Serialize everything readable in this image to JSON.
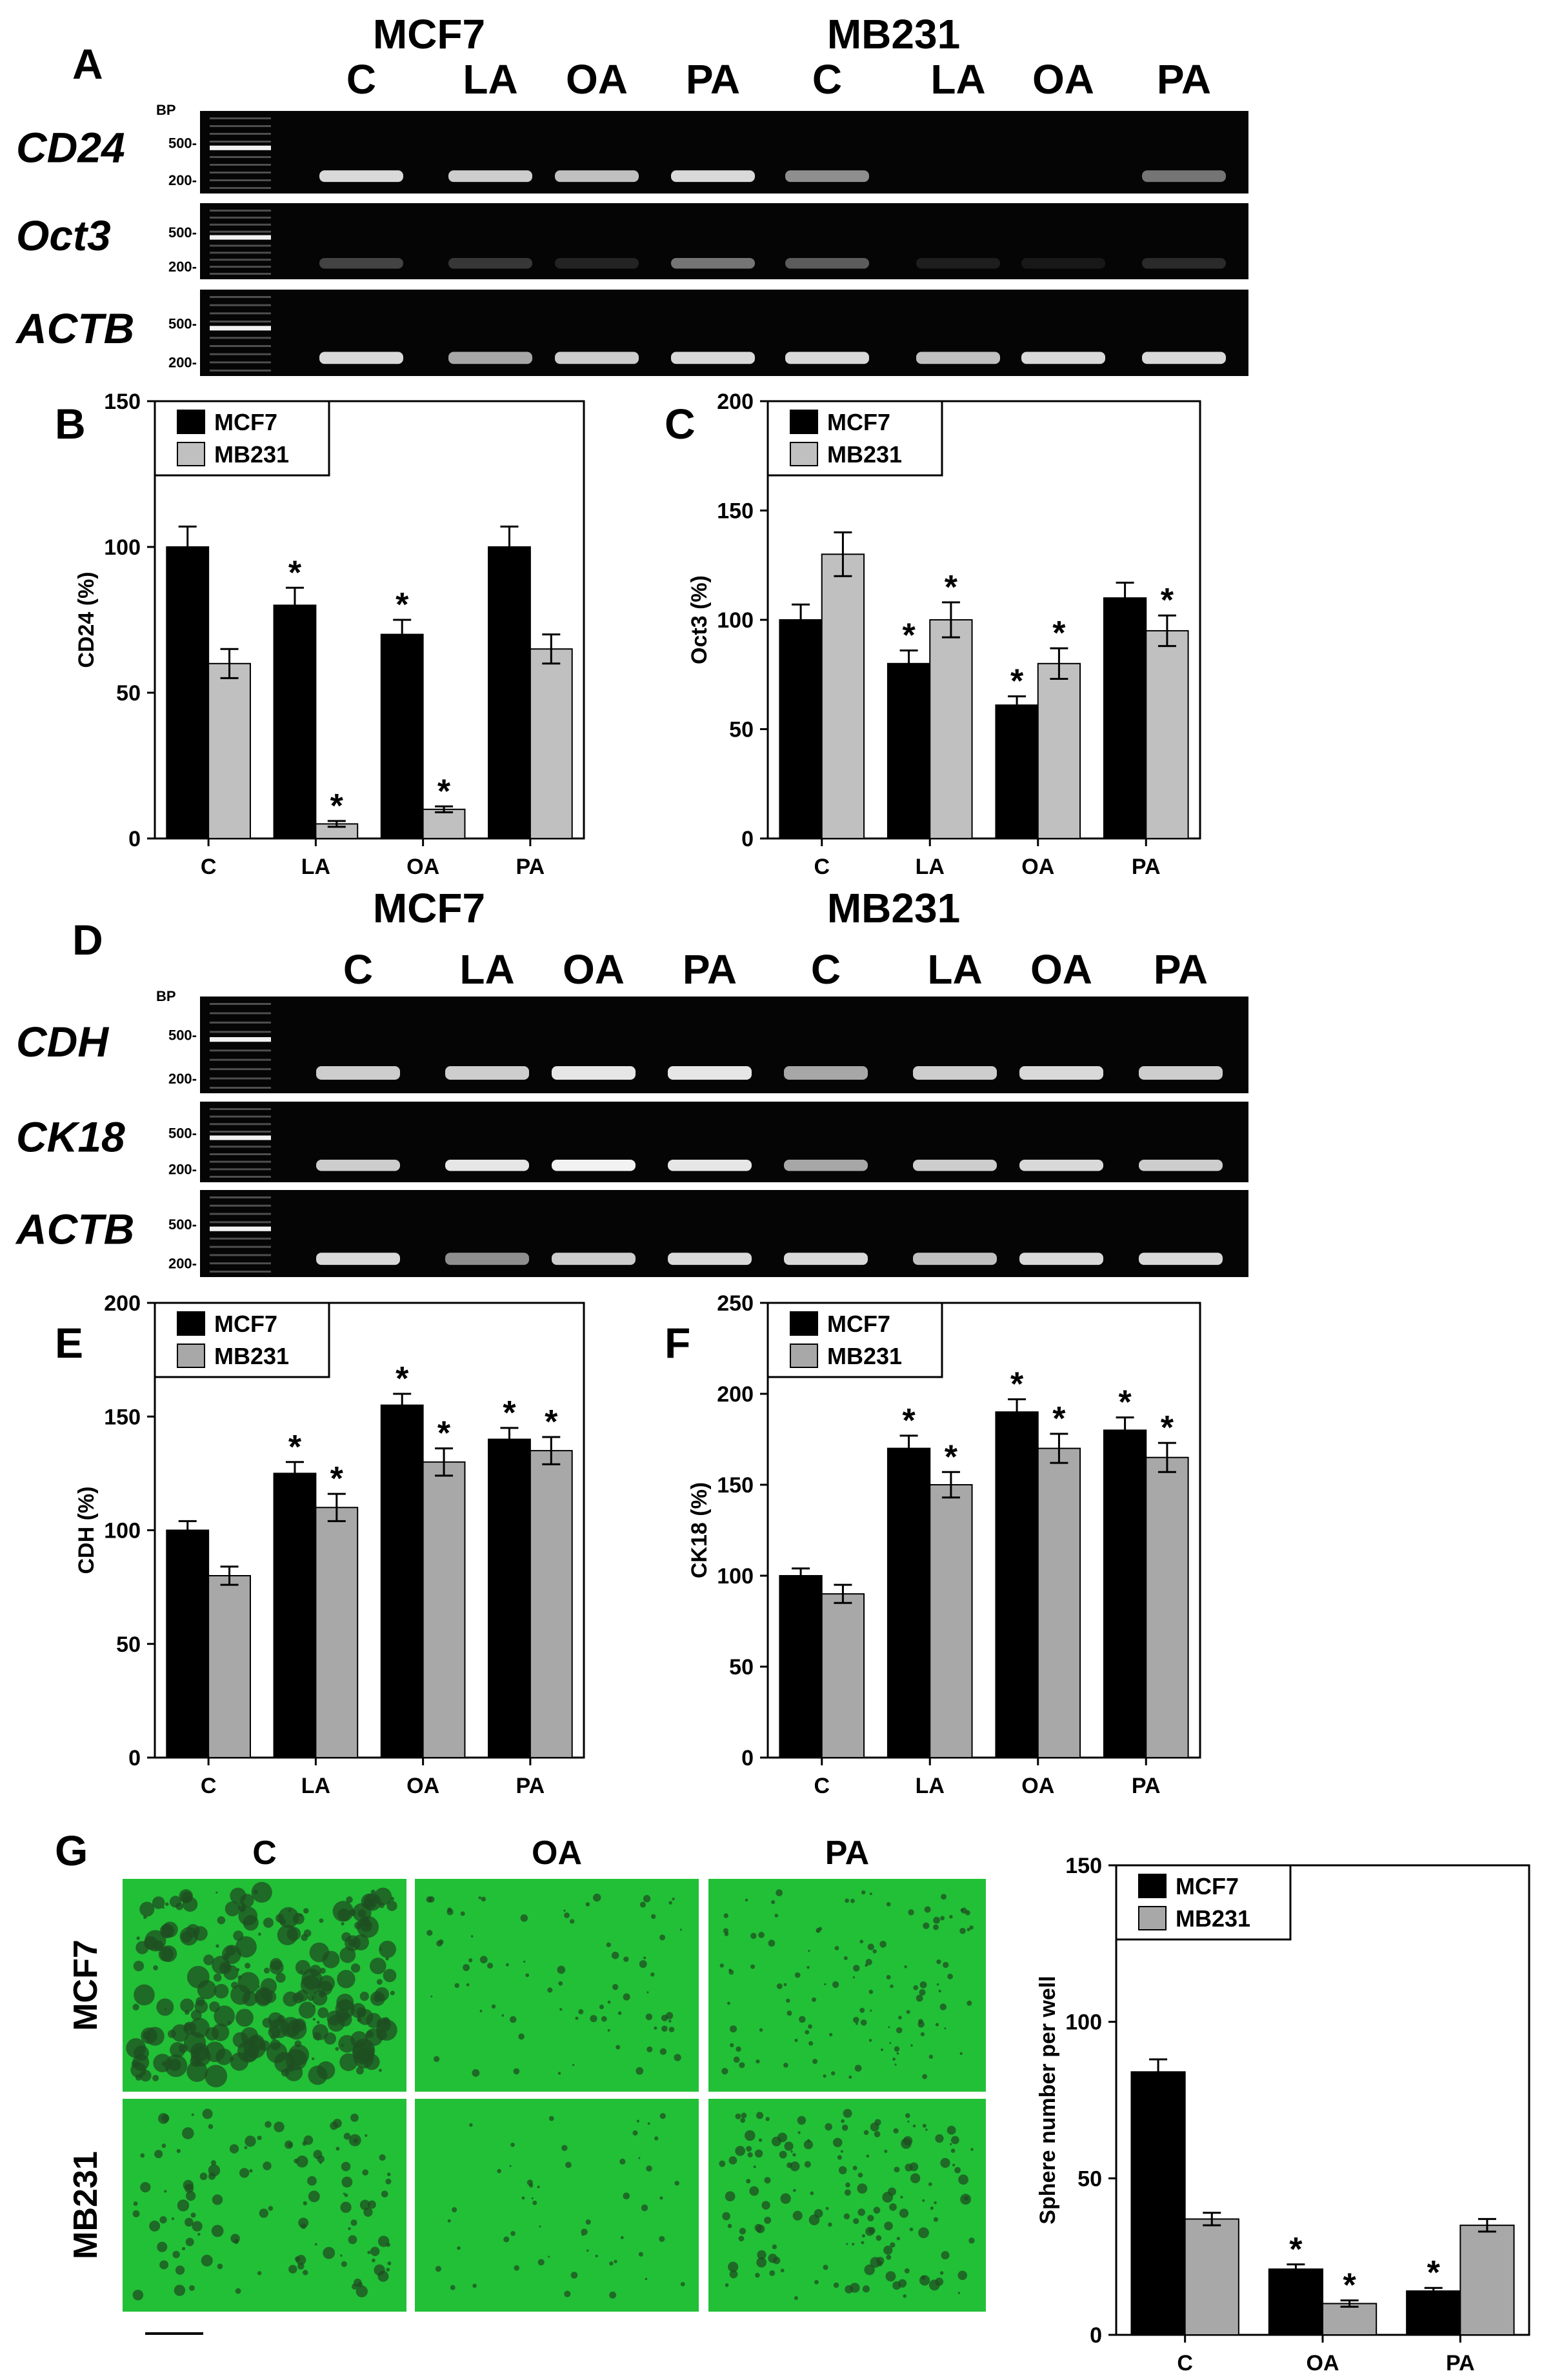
{
  "panel_letters": {
    "A": "A",
    "B": "B",
    "C": "C",
    "D": "D",
    "E": "E",
    "F": "F",
    "G": "G"
  },
  "gels": [
    {
      "cell_lines": [
        "MCF7",
        "MB231"
      ],
      "lanes": [
        "C",
        "LA",
        "OA",
        "PA",
        "C",
        "LA",
        "OA",
        "PA"
      ],
      "bp_header": "BP",
      "rows": [
        {
          "gene": "CD24",
          "marker_hi": "500-",
          "marker_lo": "200-",
          "band_intensity": [
            0.85,
            0.8,
            0.75,
            0.85,
            0.55,
            0.0,
            0.0,
            0.45
          ]
        },
        {
          "gene": "Oct3",
          "marker_hi": "500-",
          "marker_lo": "200-",
          "band_intensity": [
            0.25,
            0.2,
            0.12,
            0.45,
            0.35,
            0.1,
            0.08,
            0.15
          ]
        },
        {
          "gene": "ACTB",
          "marker_hi": "500-",
          "marker_lo": "200-",
          "band_intensity": [
            0.85,
            0.65,
            0.8,
            0.85,
            0.85,
            0.75,
            0.85,
            0.85
          ]
        }
      ]
    },
    {
      "cell_lines": [
        "MCF7",
        "MB231"
      ],
      "lanes": [
        "C",
        "LA",
        "OA",
        "PA",
        "C",
        "LA",
        "OA",
        "PA"
      ],
      "bp_header": "BP",
      "rows": [
        {
          "gene": "CDH",
          "marker_hi": "500-",
          "marker_lo": "200-",
          "band_intensity": [
            0.8,
            0.8,
            0.9,
            0.9,
            0.65,
            0.8,
            0.85,
            0.8
          ]
        },
        {
          "gene": "CK18",
          "marker_hi": "500-",
          "marker_lo": "200-",
          "band_intensity": [
            0.8,
            0.9,
            0.95,
            0.9,
            0.65,
            0.8,
            0.85,
            0.8
          ]
        },
        {
          "gene": "ACTB",
          "marker_hi": "500-",
          "marker_lo": "200-",
          "band_intensity": [
            0.85,
            0.55,
            0.8,
            0.85,
            0.85,
            0.75,
            0.85,
            0.85
          ]
        }
      ]
    }
  ],
  "chart_data": [
    {
      "panel": "B",
      "type": "bar",
      "categories": [
        "C",
        "LA",
        "OA",
        "PA"
      ],
      "ylabel": "CD24 (%)",
      "ylim": [
        0,
        150
      ],
      "yticks": [
        0,
        50,
        100,
        150
      ],
      "legend_placement": "top-left",
      "series": [
        {
          "name": "MCF7",
          "color": "#000000",
          "values": [
            100,
            80,
            70,
            100
          ],
          "errors": [
            7,
            6,
            5,
            7
          ],
          "significant": [
            false,
            true,
            true,
            false
          ]
        },
        {
          "name": "MB231",
          "color": "#c0c0c0",
          "values": [
            60,
            5,
            10,
            65
          ],
          "errors": [
            5,
            1,
            1,
            5
          ],
          "significant": [
            false,
            true,
            true,
            false
          ]
        }
      ]
    },
    {
      "panel": "C",
      "type": "bar",
      "categories": [
        "C",
        "LA",
        "OA",
        "PA"
      ],
      "ylabel": "Oct3 (%)",
      "ylim": [
        0,
        200
      ],
      "yticks": [
        0,
        50,
        100,
        150,
        200
      ],
      "legend_placement": "top-left",
      "series": [
        {
          "name": "MCF7",
          "color": "#000000",
          "values": [
            100,
            80,
            61,
            110
          ],
          "errors": [
            7,
            6,
            4,
            7
          ],
          "significant": [
            false,
            true,
            true,
            false
          ]
        },
        {
          "name": "MB231",
          "color": "#c0c0c0",
          "values": [
            130,
            100,
            80,
            95
          ],
          "errors": [
            10,
            8,
            7,
            7
          ],
          "significant": [
            false,
            true,
            true,
            true
          ]
        }
      ]
    },
    {
      "panel": "E",
      "type": "bar",
      "categories": [
        "C",
        "LA",
        "OA",
        "PA"
      ],
      "ylabel": "CDH (%)",
      "ylim": [
        0,
        200
      ],
      "yticks": [
        0,
        50,
        100,
        150,
        200
      ],
      "legend_placement": "top-left",
      "series": [
        {
          "name": "MCF7",
          "color": "#000000",
          "values": [
            100,
            125,
            155,
            140
          ],
          "errors": [
            4,
            5,
            5,
            5
          ],
          "significant": [
            false,
            true,
            true,
            true
          ]
        },
        {
          "name": "MB231",
          "color": "#a8a8a8",
          "values": [
            80,
            110,
            130,
            135
          ],
          "errors": [
            4,
            6,
            6,
            6
          ],
          "significant": [
            false,
            true,
            true,
            true
          ]
        }
      ]
    },
    {
      "panel": "F",
      "type": "bar",
      "categories": [
        "C",
        "LA",
        "OA",
        "PA"
      ],
      "ylabel": "CK18 (%)",
      "ylim": [
        0,
        250
      ],
      "yticks": [
        0,
        50,
        100,
        150,
        200,
        250
      ],
      "legend_placement": "top-left",
      "series": [
        {
          "name": "MCF7",
          "color": "#000000",
          "values": [
            100,
            170,
            190,
            180
          ],
          "errors": [
            4,
            7,
            7,
            7
          ],
          "significant": [
            false,
            true,
            true,
            true
          ]
        },
        {
          "name": "MB231",
          "color": "#a8a8a8",
          "values": [
            90,
            150,
            170,
            165
          ],
          "errors": [
            5,
            7,
            8,
            8
          ],
          "significant": [
            false,
            true,
            true,
            true
          ]
        }
      ]
    },
    {
      "panel": "G",
      "type": "bar",
      "categories": [
        "C",
        "OA",
        "PA"
      ],
      "ylabel": "Sphere number per well",
      "ylim": [
        0,
        150
      ],
      "yticks": [
        0,
        50,
        100,
        150
      ],
      "legend_placement": "top-left",
      "series": [
        {
          "name": "MCF7",
          "color": "#000000",
          "values": [
            84,
            21,
            14
          ],
          "errors": [
            4,
            1.5,
            1
          ],
          "significant": [
            false,
            true,
            true
          ]
        },
        {
          "name": "MB231",
          "color": "#a8a8a8",
          "values": [
            37,
            10,
            35
          ],
          "errors": [
            2,
            1,
            2
          ],
          "significant": [
            false,
            true,
            false
          ]
        }
      ]
    }
  ],
  "micrographs": {
    "columns": [
      "C",
      "OA",
      "PA"
    ],
    "rows": [
      "MCF7",
      "MB231"
    ],
    "background_color": "#22c037"
  },
  "significance_mark": "*"
}
